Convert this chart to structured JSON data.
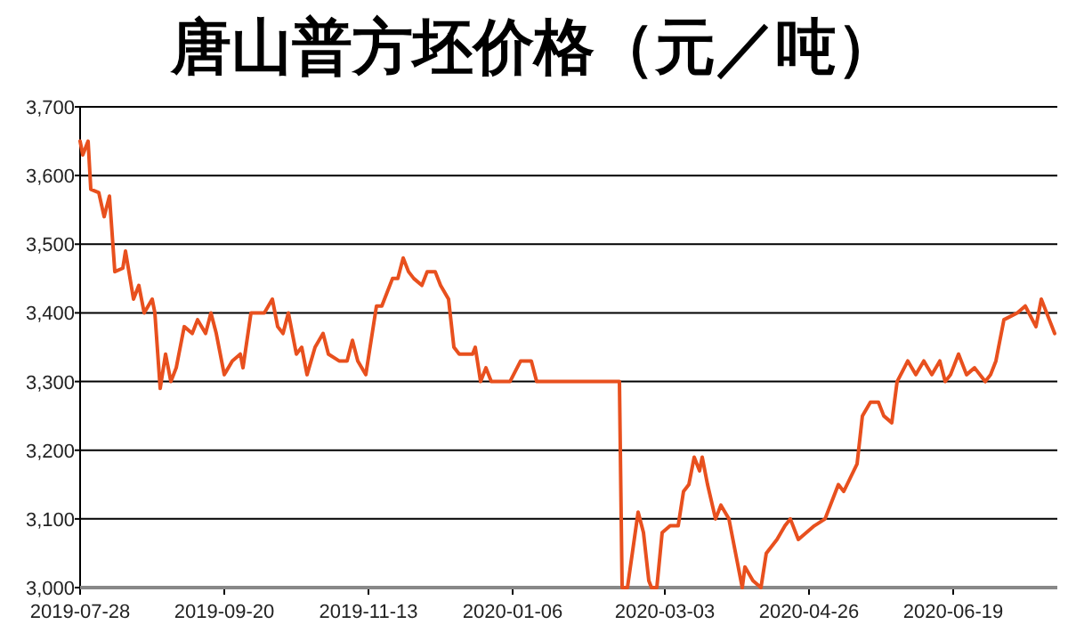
{
  "chart_data": {
    "type": "line",
    "title": "唐山普方坯价格（元／吨）",
    "x": [
      "2019-07-28",
      "2019-07-29",
      "2019-07-31",
      "2019-08-01",
      "2019-08-04",
      "2019-08-06",
      "2019-08-08",
      "2019-08-10",
      "2019-08-13",
      "2019-08-14",
      "2019-08-17",
      "2019-08-19",
      "2019-08-21",
      "2019-08-24",
      "2019-08-25",
      "2019-08-27",
      "2019-08-29",
      "2019-08-31",
      "2019-09-02",
      "2019-09-05",
      "2019-09-08",
      "2019-09-10",
      "2019-09-13",
      "2019-09-15",
      "2019-09-17",
      "2019-09-20",
      "2019-09-23",
      "2019-09-26",
      "2019-09-27",
      "2019-09-30",
      "2019-10-05",
      "2019-10-08",
      "2019-10-10",
      "2019-10-12",
      "2019-10-14",
      "2019-10-17",
      "2019-10-19",
      "2019-10-21",
      "2019-10-24",
      "2019-10-27",
      "2019-10-29",
      "2019-11-02",
      "2019-11-05",
      "2019-11-07",
      "2019-11-09",
      "2019-11-12",
      "2019-11-14",
      "2019-11-16",
      "2019-11-18",
      "2019-11-22",
      "2019-11-24",
      "2019-11-26",
      "2019-11-28",
      "2019-11-30",
      "2019-12-03",
      "2019-12-05",
      "2019-12-08",
      "2019-12-10",
      "2019-12-13",
      "2019-12-15",
      "2019-12-17",
      "2019-12-22",
      "2019-12-23",
      "2019-12-25",
      "2019-12-27",
      "2019-12-29",
      "2020-01-05",
      "2020-01-09",
      "2020-01-13",
      "2020-01-15",
      "2020-02-15",
      "2020-02-16",
      "2020-02-18",
      "2020-02-22",
      "2020-02-24",
      "2020-02-26",
      "2020-02-27",
      "2020-02-29",
      "2020-03-02",
      "2020-03-05",
      "2020-03-08",
      "2020-03-10",
      "2020-03-12",
      "2020-03-14",
      "2020-03-16",
      "2020-03-17",
      "2020-03-19",
      "2020-03-22",
      "2020-03-24",
      "2020-03-27",
      "2020-03-30",
      "2020-04-01",
      "2020-04-02",
      "2020-04-05",
      "2020-04-08",
      "2020-04-10",
      "2020-04-14",
      "2020-04-17",
      "2020-04-19",
      "2020-04-22",
      "2020-04-25",
      "2020-04-28",
      "2020-05-02",
      "2020-05-05",
      "2020-05-07",
      "2020-05-09",
      "2020-05-14",
      "2020-05-16",
      "2020-05-19",
      "2020-05-22",
      "2020-05-24",
      "2020-05-27",
      "2020-05-29",
      "2020-06-02",
      "2020-06-05",
      "2020-06-08",
      "2020-06-11",
      "2020-06-14",
      "2020-06-16",
      "2020-06-18",
      "2020-06-21",
      "2020-06-24",
      "2020-06-27",
      "2020-07-01",
      "2020-07-03",
      "2020-07-05",
      "2020-07-08",
      "2020-07-13",
      "2020-07-16",
      "2020-07-20",
      "2020-07-22",
      "2020-07-25",
      "2020-07-27"
    ],
    "values": [
      3650,
      3630,
      3650,
      3580,
      3575,
      3540,
      3570,
      3460,
      3465,
      3490,
      3420,
      3440,
      3400,
      3420,
      3400,
      3290,
      3340,
      3300,
      3320,
      3380,
      3370,
      3390,
      3370,
      3400,
      3370,
      3310,
      3330,
      3340,
      3320,
      3400,
      3400,
      3420,
      3380,
      3370,
      3400,
      3340,
      3350,
      3310,
      3350,
      3370,
      3340,
      3330,
      3330,
      3360,
      3330,
      3310,
      3360,
      3410,
      3410,
      3450,
      3450,
      3480,
      3460,
      3450,
      3440,
      3460,
      3460,
      3440,
      3420,
      3350,
      3340,
      3340,
      3350,
      3300,
      3320,
      3300,
      3300,
      3330,
      3330,
      3300,
      3300,
      3000,
      3000,
      3110,
      3080,
      3010,
      3000,
      3000,
      3080,
      3090,
      3090,
      3140,
      3150,
      3190,
      3170,
      3190,
      3150,
      3100,
      3120,
      3100,
      3040,
      3000,
      3030,
      3010,
      3000,
      3050,
      3070,
      3090,
      3100,
      3070,
      3080,
      3090,
      3100,
      3130,
      3150,
      3140,
      3180,
      3250,
      3270,
      3270,
      3250,
      3240,
      3300,
      3330,
      3310,
      3330,
      3310,
      3330,
      3300,
      3310,
      3340,
      3310,
      3320,
      3300,
      3310,
      3330,
      3390,
      3400,
      3410,
      3380,
      3420,
      3390,
      3370
    ],
    "color": "#e8501e",
    "xlim": [
      "2019-07-28",
      "2020-07-28"
    ],
    "xticks": [
      "2019-07-28",
      "2019-09-20",
      "2019-11-13",
      "2020-01-06",
      "2020-03-03",
      "2020-04-26",
      "2020-06-19"
    ],
    "ylim": [
      3000,
      3700
    ],
    "yticks": [
      {
        "value": 3000,
        "label": "3,000"
      },
      {
        "value": 3100,
        "label": "3,100"
      },
      {
        "value": 3200,
        "label": "3,200"
      },
      {
        "value": 3300,
        "label": "3,300"
      },
      {
        "value": 3400,
        "label": "3,400"
      },
      {
        "value": 3500,
        "label": "3,500"
      },
      {
        "value": 3600,
        "label": "3,600"
      },
      {
        "value": 3700,
        "label": "3,700"
      }
    ],
    "grid": "y"
  }
}
